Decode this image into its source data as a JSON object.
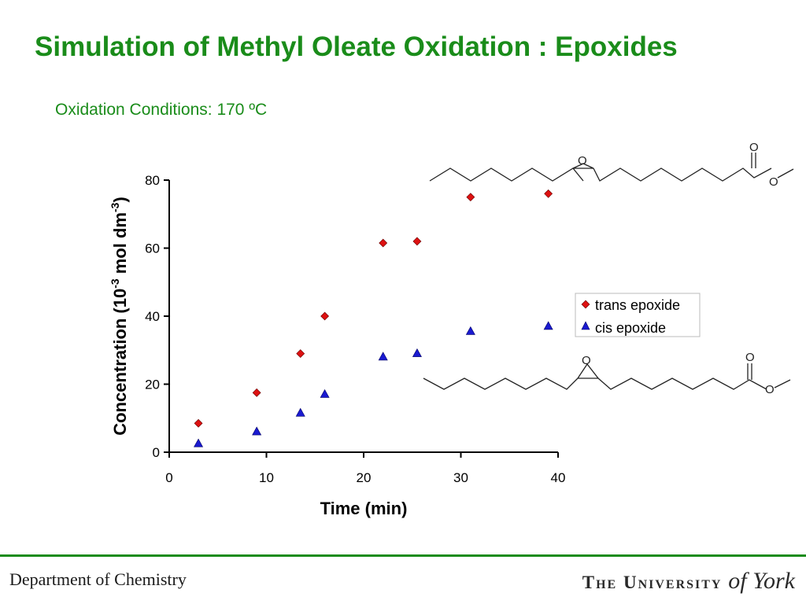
{
  "slide": {
    "title": "Simulation of Methyl Oleate Oxidation : Epoxides",
    "subtitle": "Oxidation Conditions: 170 ºC"
  },
  "footer": {
    "department": "Department of Chemistry",
    "university_main": "The University ",
    "university_script": "of York"
  },
  "colors": {
    "title_green": "#1a8c1a",
    "trans_red": "#dd1111",
    "cis_blue": "#1a1ad0"
  },
  "molecules": {
    "trans_oxygen_label": "O",
    "cis_oxygen_label": "O",
    "ester_carbonyl_label": "O",
    "ester_oxygen_label": "O"
  },
  "chart_data": {
    "type": "scatter",
    "title": "",
    "xlabel": "Time (min)",
    "ylabel_main": "Concentration (10",
    "ylabel_sup1": "-3",
    "ylabel_mid": " mol dm",
    "ylabel_sup2": "-3",
    "ylabel_end": ")",
    "xlim": [
      0,
      40
    ],
    "ylim": [
      0,
      80
    ],
    "xticks": [
      0,
      10,
      20,
      30,
      40
    ],
    "yticks": [
      0,
      20,
      40,
      60,
      80
    ],
    "grid": false,
    "legend_position": "right-middle",
    "series": [
      {
        "name": "trans epoxide",
        "marker": "diamond",
        "color": "#dd1111",
        "x": [
          3,
          9,
          13.5,
          16,
          22,
          25.5,
          31,
          39
        ],
        "y": [
          8.5,
          17.5,
          29,
          40,
          61.5,
          62,
          75,
          76
        ]
      },
      {
        "name": "cis epoxide",
        "marker": "triangle",
        "color": "#1a1ad0",
        "x": [
          3,
          9,
          13.5,
          16,
          22,
          25.5,
          31,
          39
        ],
        "y": [
          2.5,
          6,
          11.5,
          17,
          28,
          29,
          35.5,
          37
        ]
      }
    ]
  }
}
